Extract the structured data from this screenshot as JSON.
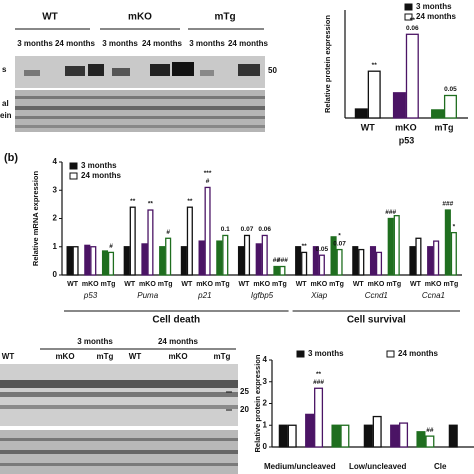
{
  "top_blot": {
    "genotypes": [
      "WT",
      "mKO",
      "mTg"
    ],
    "ages": [
      "3 months",
      "24 months"
    ],
    "marker": "50",
    "left_labels": [
      "s",
      "al",
      "ein"
    ]
  },
  "panel_label": "(b)",
  "bottom_blot": {
    "ages": [
      "3 months",
      "24 months"
    ],
    "genotypes": [
      "WT",
      "mKO",
      "mTg"
    ],
    "markers": [
      "25",
      "20"
    ]
  },
  "chart_data": [
    {
      "type": "bar",
      "ylabel": "Relative protein expression",
      "categories": [
        "p53"
      ],
      "genotypes": [
        "WT",
        "mKO",
        "mTg"
      ],
      "colors": [
        "#111111",
        "#4b1465",
        "#1f6e1f"
      ],
      "series": [
        {
          "name": "3 months",
          "filled": true,
          "values": [
            [
              1.0,
              2.8,
              0.9
            ]
          ]
        },
        {
          "name": "24 months",
          "filled": false,
          "values": [
            [
              5.2,
              9.3,
              2.5
            ]
          ]
        }
      ],
      "ylim": [
        0,
        12
      ],
      "annotations": [
        {
          "text": "**",
          "category": 0,
          "genotype": 0,
          "series": 1
        },
        {
          "text": "0.06",
          "category": 0,
          "genotype": 1,
          "series": 1
        },
        {
          "text": "**",
          "category": 0,
          "genotype": 1,
          "series": 1
        },
        {
          "text": "0.05",
          "category": 0,
          "genotype": 2,
          "series": 1
        }
      ]
    },
    {
      "type": "bar",
      "ylabel": "Relative mRNA expression",
      "categories": [
        "p53",
        "Puma",
        "p21",
        "Igfbp5",
        "Xiap",
        "Ccnd1",
        "Ccna1"
      ],
      "genotypes": [
        "WT",
        "mKO",
        "mTg"
      ],
      "colors": [
        "#111111",
        "#4b1465",
        "#1f6e1f"
      ],
      "group_labels": [
        {
          "text": "Cell death",
          "categories": [
            0,
            3
          ]
        },
        {
          "text": "Cell survival",
          "categories": [
            4,
            6
          ]
        }
      ],
      "series": [
        {
          "name": "3 months",
          "filled": true,
          "values": [
            [
              1.0,
              1.05,
              0.85
            ],
            [
              1.0,
              1.1,
              1.0
            ],
            [
              1.0,
              1.2,
              1.2
            ],
            [
              1.0,
              1.1,
              0.3
            ],
            [
              1.0,
              1.0,
              1.35
            ],
            [
              1.0,
              1.0,
              2.0
            ],
            [
              1.0,
              1.0,
              2.3
            ]
          ]
        },
        {
          "name": "24 months",
          "filled": false,
          "values": [
            [
              1.0,
              1.0,
              0.8
            ],
            [
              2.4,
              2.3,
              1.3
            ],
            [
              2.4,
              3.1,
              1.4
            ],
            [
              1.4,
              1.4,
              0.3
            ],
            [
              0.8,
              0.7,
              0.9
            ],
            [
              0.9,
              0.8,
              2.1
            ],
            [
              1.3,
              1.2,
              1.5
            ]
          ]
        }
      ],
      "ylim": [
        0,
        4
      ],
      "yticks": [
        0,
        1,
        2,
        3,
        4
      ],
      "annotations": [
        {
          "text": "#",
          "category": 0,
          "genotype": 2,
          "series": 1
        },
        {
          "text": "**",
          "category": 1,
          "genotype": 0,
          "series": 1
        },
        {
          "text": "**",
          "category": 1,
          "genotype": 1,
          "series": 1
        },
        {
          "text": "#",
          "category": 1,
          "genotype": 2,
          "series": 1
        },
        {
          "text": "**",
          "category": 2,
          "genotype": 0,
          "series": 1
        },
        {
          "text": "#",
          "category": 2,
          "genotype": 1,
          "series": 1
        },
        {
          "text": "***",
          "category": 2,
          "genotype": 1,
          "series": 1
        },
        {
          "text": "0.1",
          "category": 2,
          "genotype": 2,
          "series": 1
        },
        {
          "text": "0.07",
          "category": 3,
          "genotype": 0,
          "series": 1
        },
        {
          "text": "0.06",
          "category": 3,
          "genotype": 1,
          "series": 1
        },
        {
          "text": "##",
          "category": 3,
          "genotype": 2,
          "series": 0
        },
        {
          "text": "###",
          "category": 3,
          "genotype": 2,
          "series": 1
        },
        {
          "text": "**",
          "category": 4,
          "genotype": 0,
          "series": 1
        },
        {
          "text": "0.05",
          "category": 4,
          "genotype": 1,
          "series": 1
        },
        {
          "text": "0.07",
          "category": 4,
          "genotype": 2,
          "series": 1
        },
        {
          "text": "*",
          "category": 4,
          "genotype": 2,
          "series": 1
        },
        {
          "text": "###",
          "category": 5,
          "genotype": 2,
          "series": 0
        },
        {
          "text": "###",
          "category": 6,
          "genotype": 2,
          "series": 0
        },
        {
          "text": "*",
          "category": 6,
          "genotype": 2,
          "series": 1
        }
      ]
    },
    {
      "type": "bar",
      "ylabel": "Relative protein expression",
      "categories": [
        "Medium/uncleaved",
        "Low/uncleaved",
        "Cle"
      ],
      "colors": [
        "#111111",
        "#4b1465",
        "#1f6e1f"
      ],
      "series": [
        {
          "name": "3 months",
          "filled": true,
          "values": [
            [
              1.0,
              1.5,
              1.0
            ],
            [
              1.0,
              1.0,
              0.7
            ],
            [
              1.0,
              null,
              null
            ]
          ]
        },
        {
          "name": "24 months",
          "filled": false,
          "values": [
            [
              1.0,
              2.7,
              1.0
            ],
            [
              1.4,
              1.1,
              0.5
            ],
            [
              null,
              null,
              null
            ]
          ]
        }
      ],
      "ylim": [
        0,
        4
      ],
      "yticks": [
        0,
        1,
        2,
        3,
        4
      ],
      "annotations": [
        {
          "text": "###",
          "category": 0,
          "genotype": 1,
          "series": 1
        },
        {
          "text": "**",
          "category": 0,
          "genotype": 1,
          "series": 1
        },
        {
          "text": "##",
          "category": 1,
          "genotype": 2,
          "series": 1
        }
      ]
    }
  ]
}
